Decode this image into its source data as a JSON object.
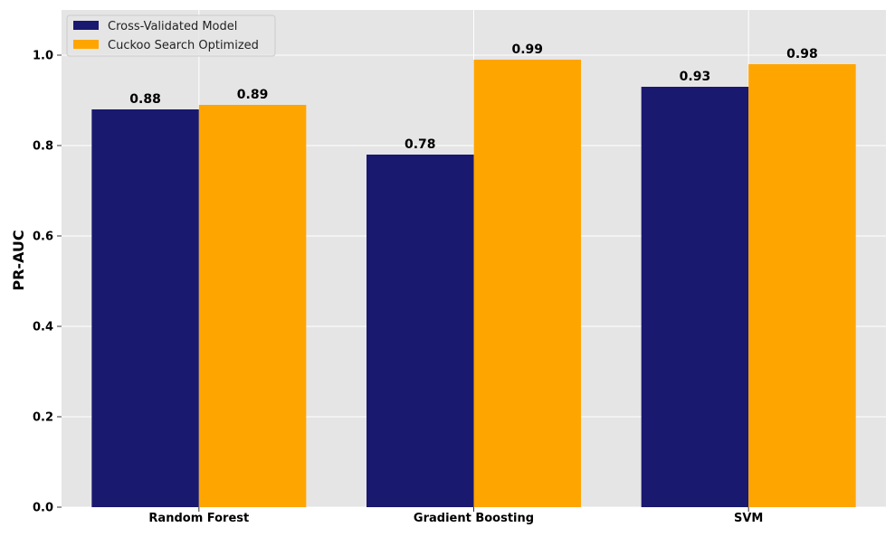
{
  "chart_data": {
    "type": "bar",
    "title": "",
    "xlabel": "",
    "ylabel": "PR-AUC",
    "categories": [
      "Random Forest",
      "Gradient Boosting",
      "SVM"
    ],
    "series": [
      {
        "name": "Cross-Validated Model",
        "values": [
          0.88,
          0.78,
          0.93
        ],
        "labels": [
          "0.88",
          "0.78",
          "0.93"
        ],
        "color": "#191970"
      },
      {
        "name": "Cuckoo Search Optimized",
        "values": [
          0.89,
          0.99,
          0.98
        ],
        "labels": [
          "0.89",
          "0.99",
          "0.98"
        ],
        "color": "#FFA500"
      }
    ],
    "ylim": [
      0,
      1.1
    ],
    "yticks": [
      0.0,
      0.2,
      0.4,
      0.6,
      0.8,
      1.0
    ],
    "ytick_labels": [
      "0.0",
      "0.2",
      "0.4",
      "0.6",
      "0.8",
      "1.0"
    ],
    "grid": true,
    "legend_position": "top-left",
    "background_color": "#E5E5E5",
    "grid_color": "#FFFFFF"
  }
}
